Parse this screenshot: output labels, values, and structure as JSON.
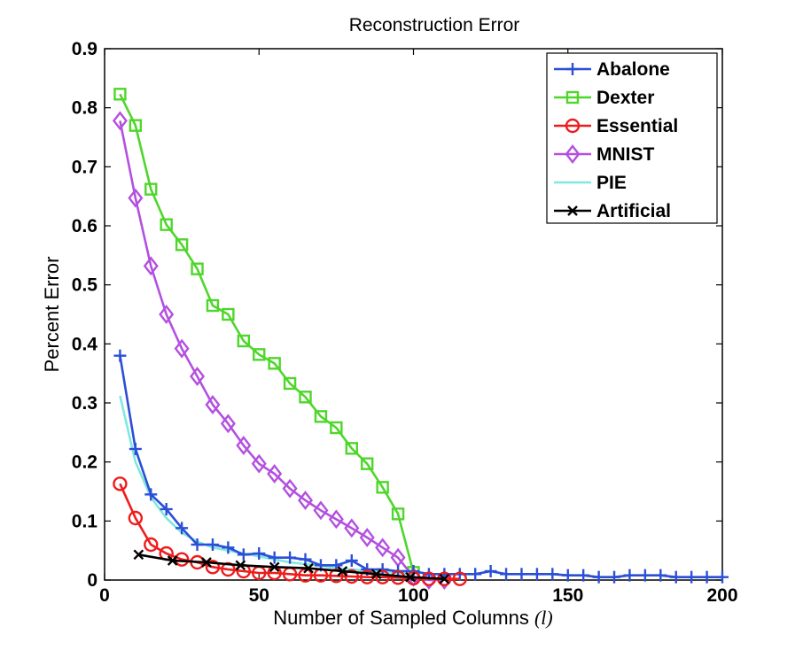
{
  "chart_data": {
    "type": "line",
    "title": "Reconstruction Error",
    "xlabel": "Number of Sampled Columns",
    "xlabel_var": "(l)",
    "ylabel": "Percent Error",
    "xlim": [
      0,
      200
    ],
    "ylim": [
      0,
      0.9
    ],
    "xticks": [
      0,
      50,
      100,
      150,
      200
    ],
    "xtick_labels": [
      "0",
      "50",
      "100",
      "150",
      "200"
    ],
    "yticks": [
      0,
      0.1,
      0.2,
      0.3,
      0.4,
      0.5,
      0.6,
      0.7,
      0.8,
      0.9
    ],
    "ytick_labels": [
      "0",
      "0.1",
      "0.2",
      "0.3",
      "0.4",
      "0.5",
      "0.6",
      "0.7",
      "0.8",
      "0.9"
    ],
    "grid": false,
    "legend_position": "top-right",
    "series": [
      {
        "name": "Abalone",
        "color": "#2b4fd6",
        "marker": "plus",
        "x": [
          5,
          10,
          15,
          20,
          25,
          30,
          35,
          40,
          45,
          50,
          55,
          60,
          65,
          70,
          75,
          80,
          85,
          90,
          95,
          100,
          105,
          110,
          115,
          120,
          125,
          130,
          135,
          140,
          145,
          150,
          155,
          160,
          165,
          170,
          175,
          180,
          185,
          190,
          195,
          200
        ],
        "y": [
          0.38,
          0.222,
          0.145,
          0.12,
          0.088,
          0.06,
          0.06,
          0.055,
          0.043,
          0.045,
          0.038,
          0.038,
          0.035,
          0.025,
          0.025,
          0.033,
          0.018,
          0.018,
          0.015,
          0.015,
          0.01,
          0.01,
          0.01,
          0.01,
          0.015,
          0.01,
          0.01,
          0.01,
          0.01,
          0.008,
          0.008,
          0.005,
          0.005,
          0.008,
          0.008,
          0.008,
          0.005,
          0.005,
          0.005,
          0.005
        ]
      },
      {
        "name": "Dexter",
        "color": "#4fd62b",
        "marker": "square",
        "x": [
          5,
          10,
          15,
          20,
          25,
          30,
          35,
          40,
          45,
          50,
          55,
          60,
          65,
          70,
          75,
          80,
          85,
          90,
          95,
          100
        ],
        "y": [
          0.823,
          0.77,
          0.662,
          0.602,
          0.568,
          0.527,
          0.465,
          0.45,
          0.405,
          0.382,
          0.367,
          0.333,
          0.31,
          0.277,
          0.258,
          0.223,
          0.197,
          0.157,
          0.112,
          0.013
        ]
      },
      {
        "name": "Essential",
        "color": "#ee1c1c",
        "marker": "circle",
        "x": [
          5,
          10,
          15,
          20,
          25,
          30,
          35,
          40,
          45,
          50,
          55,
          60,
          65,
          70,
          75,
          80,
          85,
          90,
          95,
          100,
          105,
          110,
          115
        ],
        "y": [
          0.163,
          0.105,
          0.06,
          0.045,
          0.035,
          0.03,
          0.022,
          0.018,
          0.015,
          0.012,
          0.012,
          0.01,
          0.008,
          0.008,
          0.007,
          0.006,
          0.005,
          0.005,
          0.004,
          0.003,
          0.002,
          0.002,
          0.002
        ]
      },
      {
        "name": "MNIST",
        "color": "#b450e0",
        "marker": "diamond",
        "x": [
          5,
          10,
          15,
          20,
          25,
          30,
          35,
          40,
          45,
          50,
          55,
          60,
          65,
          70,
          75,
          80,
          85,
          90,
          95,
          100,
          105,
          110
        ],
        "y": [
          0.778,
          0.647,
          0.532,
          0.45,
          0.392,
          0.345,
          0.297,
          0.265,
          0.228,
          0.197,
          0.18,
          0.155,
          0.135,
          0.118,
          0.103,
          0.088,
          0.072,
          0.055,
          0.038,
          0.005,
          0.0,
          0.0
        ]
      },
      {
        "name": "PIE",
        "color": "#7fe8e0",
        "marker": "none",
        "x": [
          5,
          10,
          15,
          20,
          25,
          30,
          35,
          40,
          45,
          50,
          55,
          60,
          65,
          70,
          75,
          80,
          85,
          90,
          95,
          100
        ],
        "y": [
          0.312,
          0.2,
          0.14,
          0.105,
          0.08,
          0.065,
          0.055,
          0.05,
          0.045,
          0.04,
          0.035,
          0.03,
          0.027,
          0.024,
          0.02,
          0.018,
          0.016,
          0.014,
          0.012,
          0.01
        ]
      },
      {
        "name": "Artificial",
        "color": "#000000",
        "marker": "x",
        "x": [
          11,
          22,
          33,
          44,
          55,
          66,
          77,
          88,
          99,
          110
        ],
        "y": [
          0.043,
          0.033,
          0.03,
          0.025,
          0.022,
          0.02,
          0.015,
          0.01,
          0.005,
          0.002
        ]
      }
    ]
  }
}
